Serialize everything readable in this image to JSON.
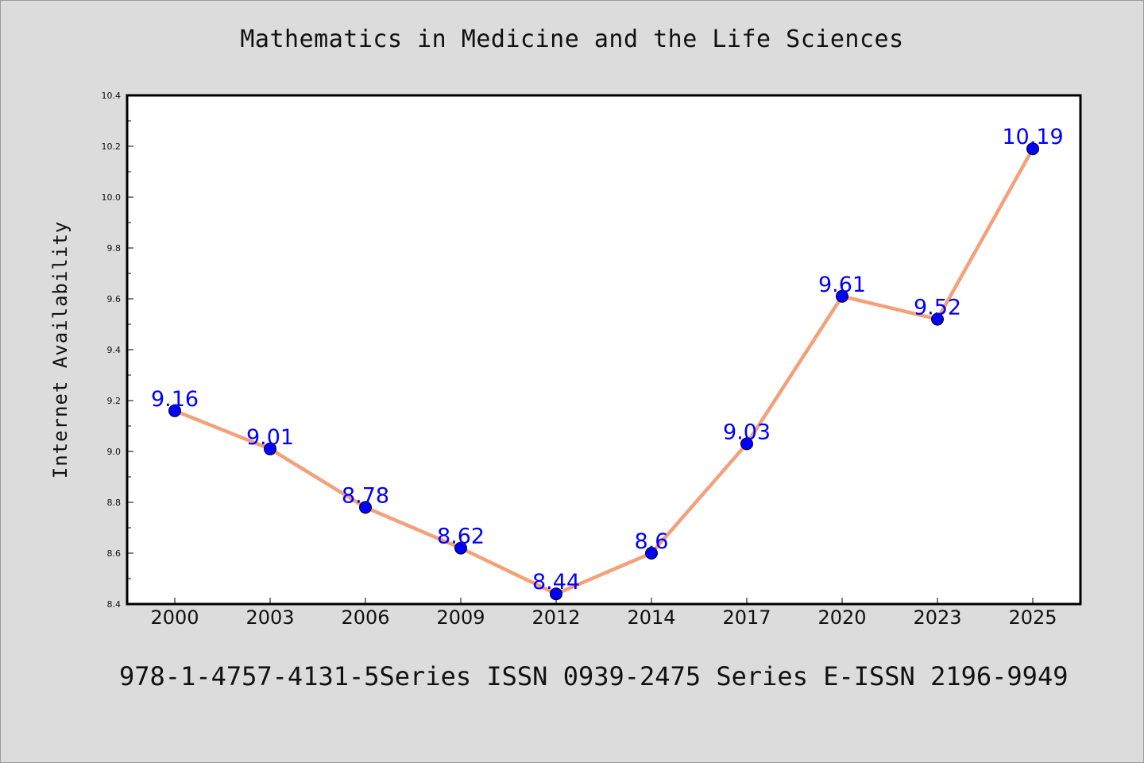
{
  "title": "Mathematics in Medicine and the Life Sciences",
  "footer": "978-1-4757-4131-5Series ISSN 0939-2475 Series E-ISSN 2196-9949",
  "chart_data": {
    "type": "line",
    "title": "Mathematics in Medicine and the Life Sciences",
    "xlabel": "",
    "ylabel": "Internet Availability",
    "categories": [
      "2000",
      "2003",
      "2006",
      "2009",
      "2012",
      "2014",
      "2017",
      "2020",
      "2023",
      "2025"
    ],
    "series": [
      {
        "values": [
          9.16,
          9.01,
          8.78,
          8.62,
          8.44,
          8.6,
          9.03,
          9.61,
          9.52,
          10.19
        ],
        "labels": [
          "9.16",
          "9.01",
          "8.78",
          "8.62",
          "8.44",
          "8.6",
          "9.03",
          "9.61",
          "9.52",
          "10.19"
        ]
      }
    ],
    "ylim": [
      8.4,
      10.4
    ],
    "yticks": [
      "8.4",
      "8.6",
      "8.8",
      "9.0",
      "9.2",
      "9.4",
      "9.6",
      "9.8",
      "10.0",
      "10.2",
      "10.4"
    ],
    "grid": false,
    "legend": "none",
    "colors": {
      "line": "#f4a07a",
      "marker": "#0000ff",
      "marker_edge": "#000000",
      "data_label": "#0000ff",
      "plot_background": "#ffffff",
      "figure_background": "#dcdcdc"
    }
  }
}
